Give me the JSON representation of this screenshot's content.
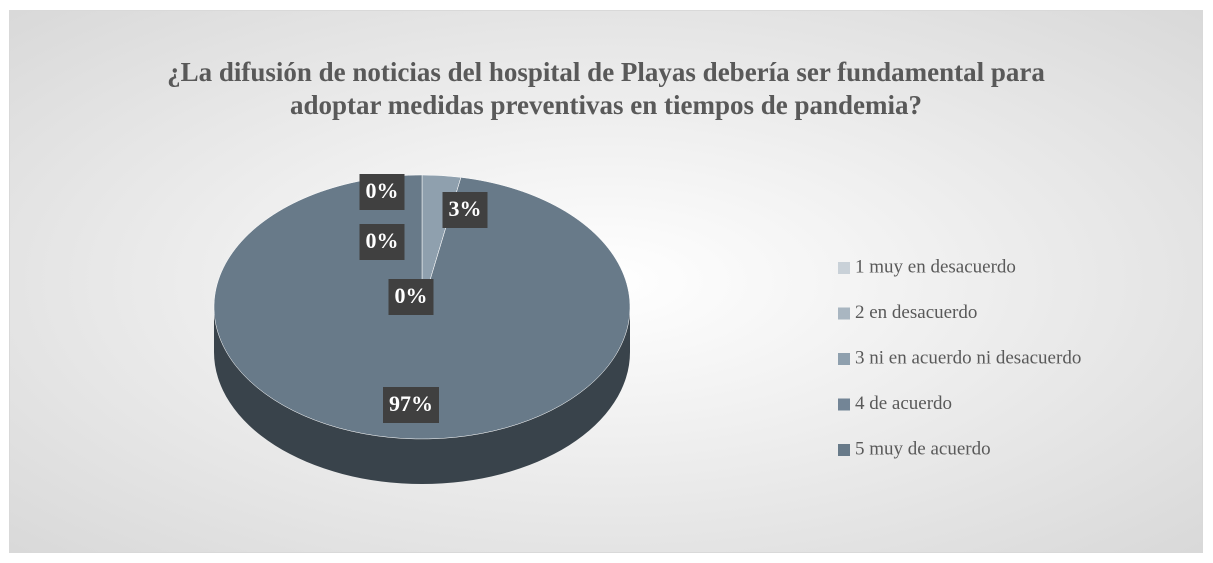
{
  "chart_data": {
    "type": "pie3d",
    "title": "¿La difusión de noticias del hospital de Playas debería ser fundamental para adoptar medidas preventivas en tiempos de pandemia?",
    "categories": [
      "1 muy en desacuerdo",
      "2 en desacuerdo",
      "3 ni en acuerdo ni desacuerdo",
      "4 de acuerdo",
      "5 muy de acuerdo"
    ],
    "values": [
      0,
      0,
      3,
      0,
      97
    ],
    "value_labels": [
      "0%",
      "0%",
      "3%",
      "0%",
      "97%"
    ],
    "colors": [
      "#c9d1d8",
      "#a9b6c1",
      "#8fa0ae",
      "#738596",
      "#687a89"
    ],
    "legend": "right"
  }
}
